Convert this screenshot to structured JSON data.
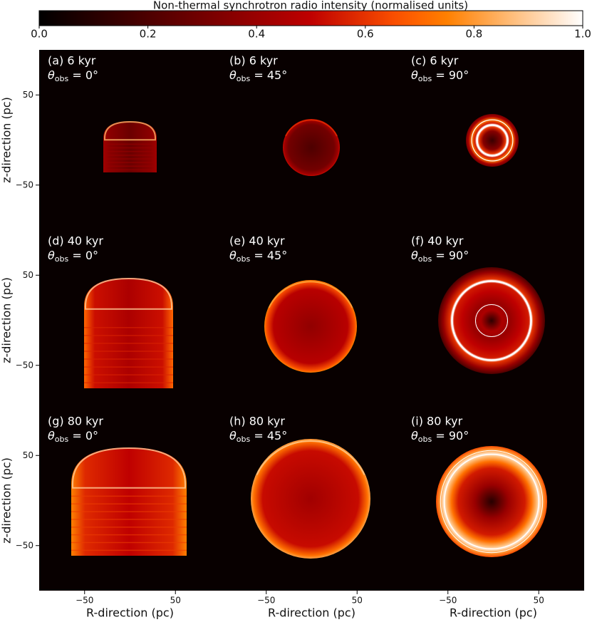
{
  "colorbar": {
    "label": "Non-thermal synchrotron radio intensity (normalised units)",
    "lim": [
      0,
      1
    ],
    "colormap": "gist_heat",
    "ticks": [
      {
        "value": 0,
        "label": "0.0"
      },
      {
        "value": 0.2,
        "label": "0.2"
      },
      {
        "value": 0.4,
        "label": "0.4"
      },
      {
        "value": 0.6,
        "label": "0.6"
      },
      {
        "value": 0.8,
        "label": "0.8"
      },
      {
        "value": 1,
        "label": "1.0"
      }
    ]
  },
  "chart_data": [
    {
      "type": "image",
      "title": "(a) 6 kyr",
      "theta": {
        "symbol": "θ",
        "subscript": "obs",
        "text": " = 0°"
      },
      "xlim": [
        -100,
        100
      ],
      "ylim": [
        -100,
        100
      ],
      "yticks": [
        {
          "value": 50,
          "label": "50"
        },
        {
          "value": -50,
          "label": "−50"
        }
      ],
      "ylabel": "z-direction (pc)"
    },
    {
      "type": "image",
      "title": "(b) 6 kyr",
      "theta": {
        "symbol": "θ",
        "subscript": "obs",
        "text": " = 45°"
      },
      "xlim": [
        -100,
        100
      ],
      "ylim": [
        -100,
        100
      ]
    },
    {
      "type": "image",
      "title": "(c) 6 kyr",
      "theta": {
        "symbol": "θ",
        "subscript": "obs",
        "text": " = 90°"
      },
      "xlim": [
        -100,
        100
      ],
      "ylim": [
        -100,
        100
      ]
    },
    {
      "type": "image",
      "title": "(d) 40 kyr",
      "theta": {
        "symbol": "θ",
        "subscript": "obs",
        "text": " = 0°"
      },
      "xlim": [
        -100,
        100
      ],
      "ylim": [
        -100,
        100
      ],
      "yticks": [
        {
          "value": 50,
          "label": "50"
        },
        {
          "value": -50,
          "label": "−50"
        }
      ],
      "ylabel": "z-direction (pc)"
    },
    {
      "type": "image",
      "title": "(e) 40 kyr",
      "theta": {
        "symbol": "θ",
        "subscript": "obs",
        "text": " = 45°"
      },
      "xlim": [
        -100,
        100
      ],
      "ylim": [
        -100,
        100
      ]
    },
    {
      "type": "image",
      "title": "(f) 40 kyr",
      "theta": {
        "symbol": "θ",
        "subscript": "obs",
        "text": " = 90°"
      },
      "xlim": [
        -100,
        100
      ],
      "ylim": [
        -100,
        100
      ]
    },
    {
      "type": "image",
      "title": "(g) 80 kyr",
      "theta": {
        "symbol": "θ",
        "subscript": "obs",
        "text": " = 0°"
      },
      "xlim": [
        -100,
        100
      ],
      "ylim": [
        -100,
        100
      ],
      "yticks": [
        {
          "value": 50,
          "label": "50"
        },
        {
          "value": -50,
          "label": "−50"
        }
      ],
      "ylabel": "z-direction (pc)",
      "xticks": [
        {
          "value": -50,
          "label": "−50"
        },
        {
          "value": 50,
          "label": "50"
        }
      ],
      "xlabel": "R-direction (pc)"
    },
    {
      "type": "image",
      "title": "(h) 80 kyr",
      "theta": {
        "symbol": "θ",
        "subscript": "obs",
        "text": " = 45°"
      },
      "xlim": [
        -100,
        100
      ],
      "ylim": [
        -100,
        100
      ],
      "xticks": [
        {
          "value": -50,
          "label": "−50"
        },
        {
          "value": 50,
          "label": "50"
        }
      ],
      "xlabel": "R-direction (pc)"
    },
    {
      "type": "image",
      "title": "(i) 80 kyr",
      "theta": {
        "symbol": "θ",
        "subscript": "obs",
        "text": " = 90°"
      },
      "xlim": [
        -100,
        100
      ],
      "ylim": [
        -100,
        100
      ],
      "xticks": [
        {
          "value": -50,
          "label": "−50"
        },
        {
          "value": 50,
          "label": "50"
        }
      ],
      "xlabel": "R-direction (pc)"
    }
  ]
}
